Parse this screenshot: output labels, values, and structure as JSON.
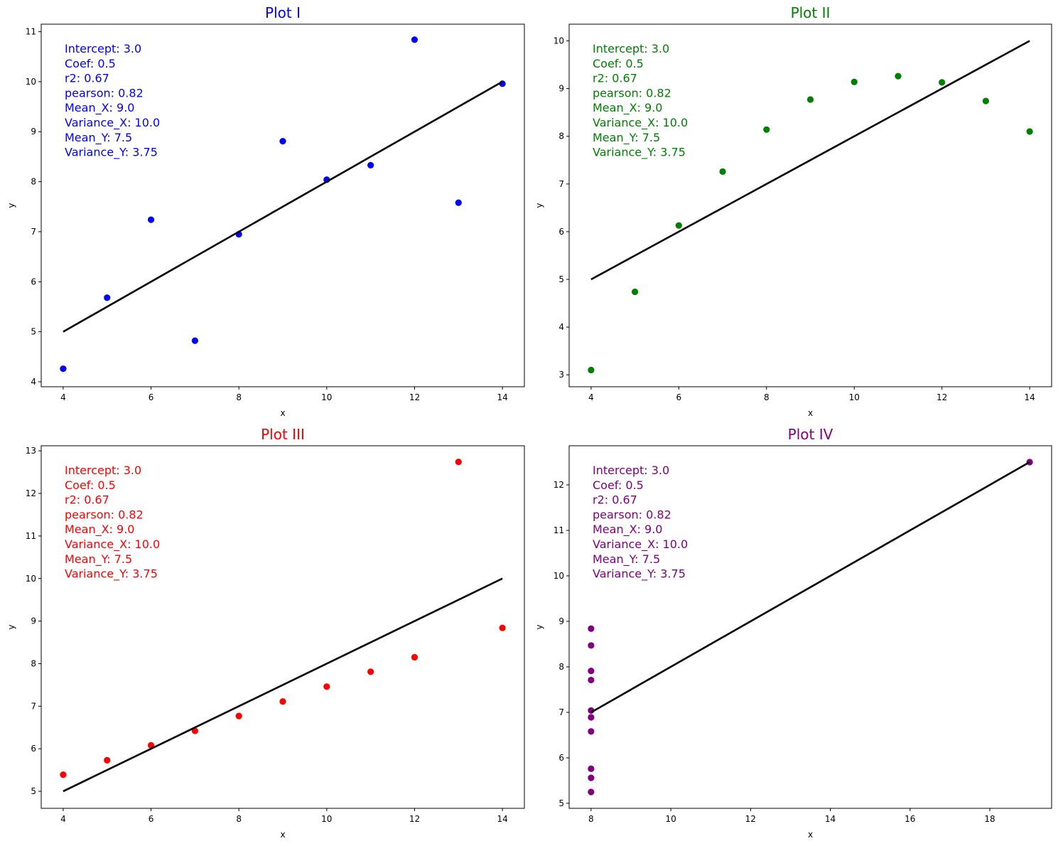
{
  "chart_data": [
    {
      "type": "scatter",
      "title": "Plot I",
      "color": "#0000ff",
      "xlabel": "x",
      "ylabel": "y",
      "xlim": [
        3.5,
        14.5
      ],
      "ylim": [
        3.9,
        11.15
      ],
      "xticks": [
        4,
        6,
        8,
        10,
        12,
        14
      ],
      "yticks": [
        4,
        5,
        6,
        7,
        8,
        9,
        10,
        11
      ],
      "grid": false,
      "x": [
        10,
        8,
        13,
        9,
        11,
        14,
        6,
        4,
        12,
        7,
        5
      ],
      "y": [
        8.04,
        6.95,
        7.58,
        8.81,
        8.33,
        9.96,
        7.24,
        4.26,
        10.84,
        4.82,
        5.68
      ],
      "regression_line": {
        "x": [
          4,
          14
        ],
        "y": [
          5.0,
          10.0
        ],
        "color": "#000000"
      },
      "stats": [
        "Intercept: 3.0",
        "Coef: 0.5",
        "r2: 0.67",
        "pearson: 0.82",
        "Mean_X: 9.0",
        "Variance_X: 10.0",
        "Mean_Y: 7.5",
        "Variance_Y: 3.75"
      ]
    },
    {
      "type": "scatter",
      "title": "Plot II",
      "color": "#008000",
      "xlabel": "x",
      "ylabel": "y",
      "xlim": [
        3.5,
        14.5
      ],
      "ylim": [
        2.75,
        10.35
      ],
      "xticks": [
        4,
        6,
        8,
        10,
        12,
        14
      ],
      "yticks": [
        3,
        4,
        5,
        6,
        7,
        8,
        9,
        10
      ],
      "grid": false,
      "x": [
        10,
        8,
        13,
        9,
        11,
        14,
        6,
        4,
        12,
        7,
        5
      ],
      "y": [
        9.14,
        8.14,
        8.74,
        8.77,
        9.26,
        8.1,
        6.13,
        3.1,
        9.13,
        7.26,
        4.74
      ],
      "regression_line": {
        "x": [
          4,
          14
        ],
        "y": [
          5.0,
          10.0
        ],
        "color": "#000000"
      },
      "stats": [
        "Intercept: 3.0",
        "Coef: 0.5",
        "r2: 0.67",
        "pearson: 0.82",
        "Mean_X: 9.0",
        "Variance_X: 10.0",
        "Mean_Y: 7.5",
        "Variance_Y: 3.75"
      ]
    },
    {
      "type": "scatter",
      "title": "Plot III",
      "color": "#ff0000",
      "xlabel": "x",
      "ylabel": "y",
      "xlim": [
        3.5,
        14.5
      ],
      "ylim": [
        4.6,
        13.12
      ],
      "xticks": [
        4,
        6,
        8,
        10,
        12,
        14
      ],
      "yticks": [
        5,
        6,
        7,
        8,
        9,
        10,
        11,
        12,
        13
      ],
      "grid": false,
      "x": [
        10,
        8,
        13,
        9,
        11,
        14,
        6,
        4,
        12,
        7,
        5
      ],
      "y": [
        7.46,
        6.77,
        12.74,
        7.11,
        7.81,
        8.84,
        6.08,
        5.39,
        8.15,
        6.42,
        5.73
      ],
      "regression_line": {
        "x": [
          4,
          14
        ],
        "y": [
          5.0,
          10.0
        ],
        "color": "#000000"
      },
      "stats": [
        "Intercept: 3.0",
        "Coef: 0.5",
        "r2: 0.67",
        "pearson: 0.82",
        "Mean_X: 9.0",
        "Variance_X: 10.0",
        "Mean_Y: 7.5",
        "Variance_Y: 3.75"
      ]
    },
    {
      "type": "scatter",
      "title": "Plot IV",
      "color": "#800080",
      "xlabel": "x",
      "ylabel": "y",
      "xlim": [
        7.45,
        19.55
      ],
      "ylim": [
        4.89,
        12.86
      ],
      "xticks": [
        8,
        10,
        12,
        14,
        16,
        18
      ],
      "yticks": [
        5,
        6,
        7,
        8,
        9,
        10,
        11,
        12
      ],
      "grid": false,
      "x": [
        8,
        8,
        8,
        8,
        8,
        8,
        8,
        19,
        8,
        8,
        8
      ],
      "y": [
        6.58,
        5.76,
        7.71,
        8.84,
        8.47,
        7.04,
        5.25,
        12.5,
        5.56,
        7.91,
        6.89
      ],
      "regression_line": {
        "x": [
          8,
          19
        ],
        "y": [
          7.0,
          12.5
        ],
        "color": "#000000"
      },
      "stats": [
        "Intercept: 3.0",
        "Coef: 0.5",
        "r2: 0.67",
        "pearson: 0.82",
        "Mean_X: 9.0",
        "Variance_X: 10.0",
        "Mean_Y: 7.5",
        "Variance_Y: 3.75"
      ]
    }
  ]
}
